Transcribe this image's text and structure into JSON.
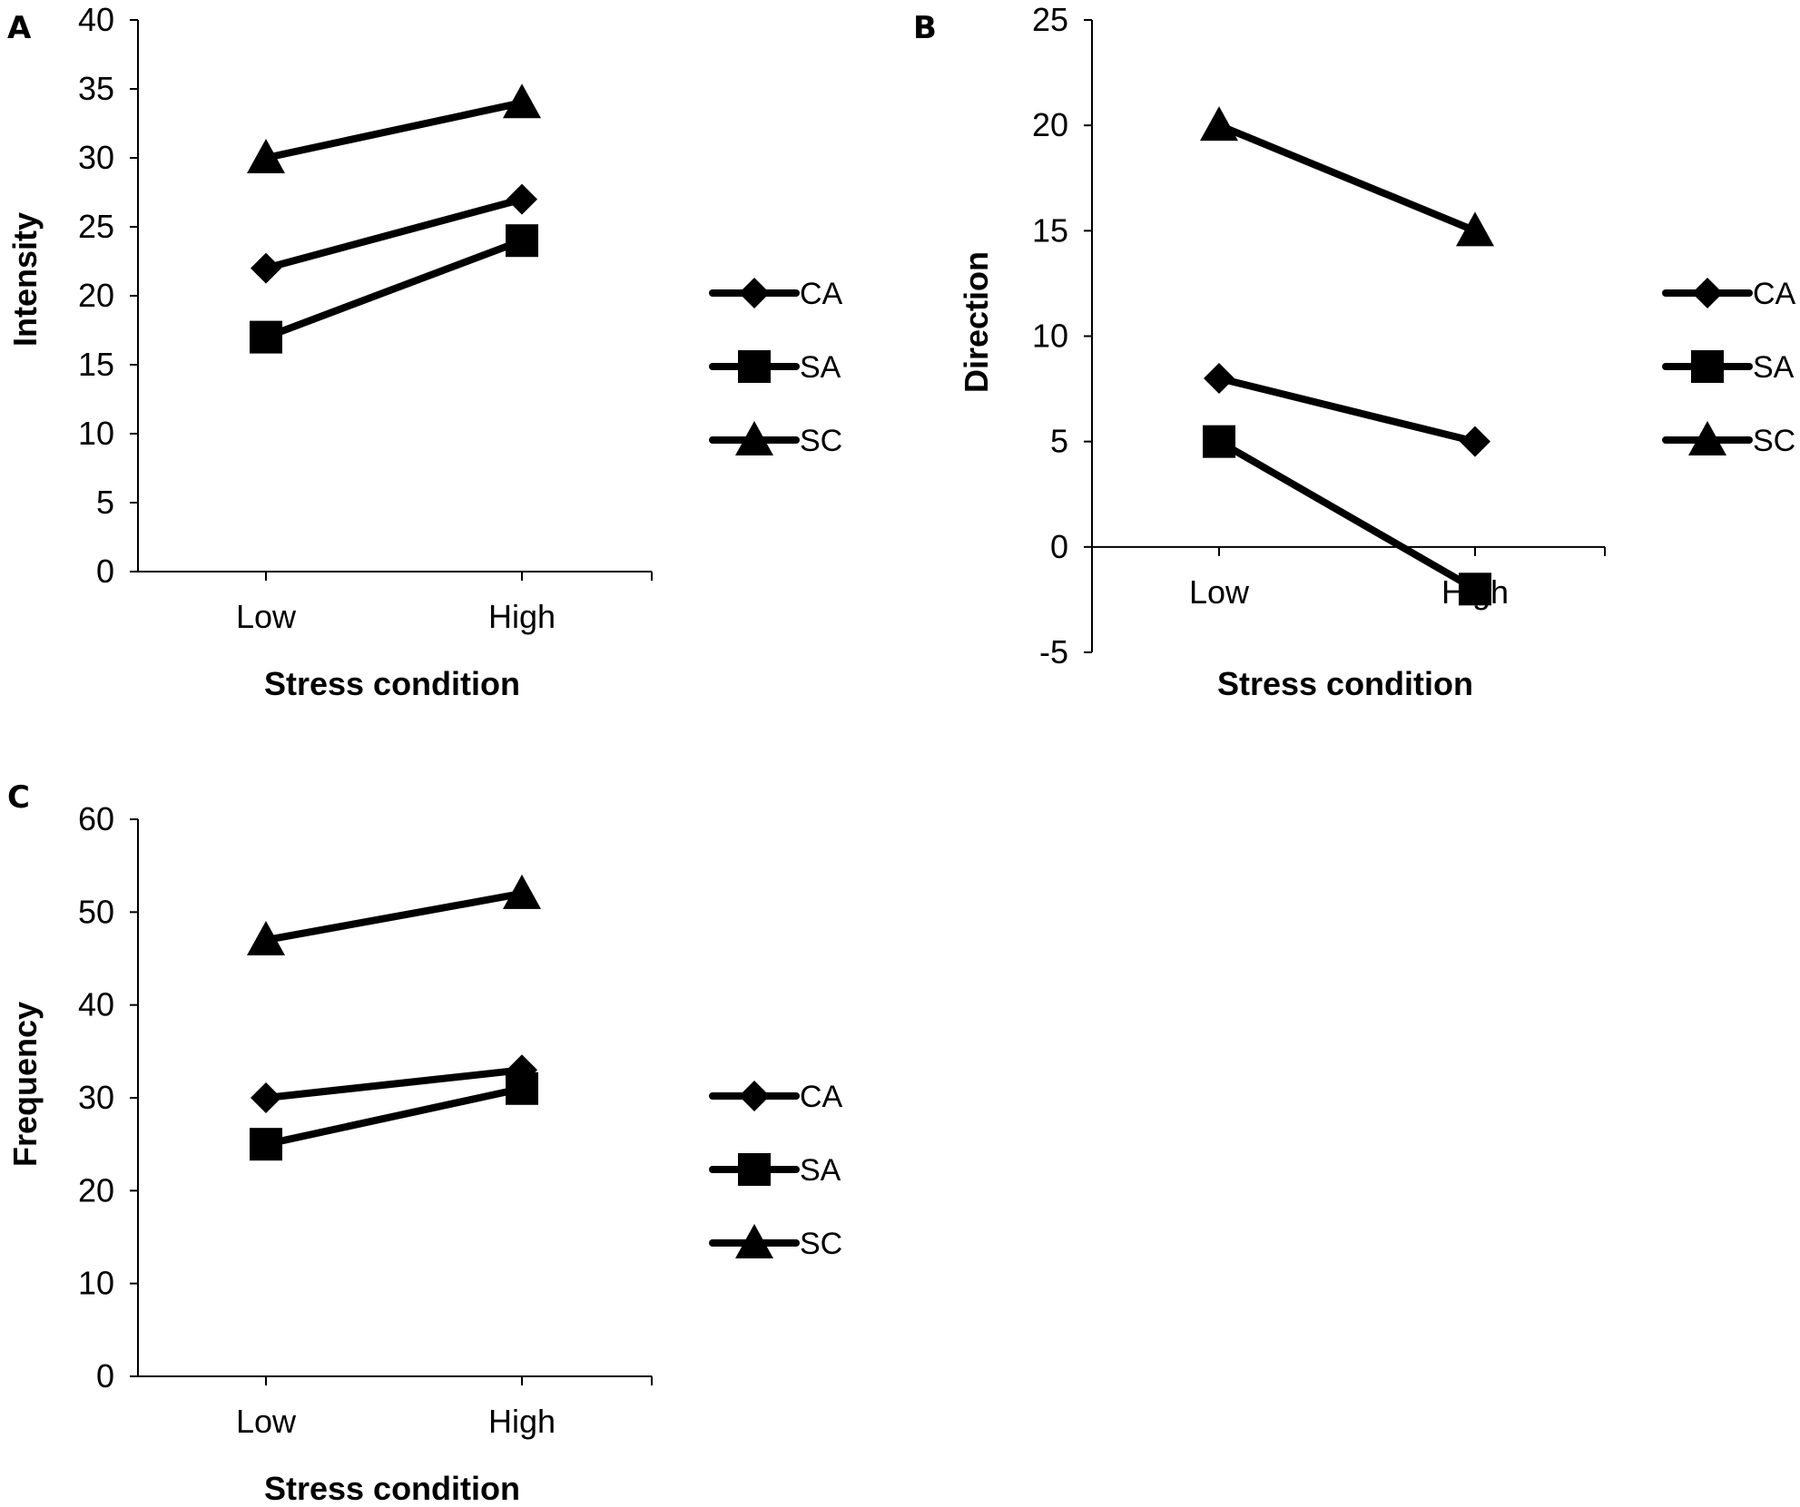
{
  "figure": {
    "colors": {
      "ink": "#000000",
      "background": "#ffffff"
    }
  },
  "chart_data": [
    {
      "panel": "A",
      "type": "line",
      "categories": [
        "Low",
        "High"
      ],
      "series": [
        {
          "name": "CA",
          "marker": "diamond",
          "values": [
            22,
            27
          ]
        },
        {
          "name": "SA",
          "marker": "square",
          "values": [
            17,
            24
          ]
        },
        {
          "name": "SC",
          "marker": "triangle",
          "values": [
            30,
            34
          ]
        }
      ],
      "xlabel": "Stress condition",
      "ylabel": "Intensity",
      "ylim": [
        0,
        40
      ],
      "yticks": [
        0,
        5,
        10,
        15,
        20,
        25,
        30,
        35,
        40
      ],
      "ytick_labels": [
        "0",
        "5",
        "10",
        "15",
        "20",
        "25",
        "30",
        "35",
        "40"
      ],
      "grid": false,
      "legend_position": "right"
    },
    {
      "panel": "B",
      "type": "line",
      "categories": [
        "Low",
        "High"
      ],
      "series": [
        {
          "name": "CA",
          "marker": "diamond",
          "values": [
            8,
            5
          ]
        },
        {
          "name": "SA",
          "marker": "square",
          "values": [
            5,
            -2
          ]
        },
        {
          "name": "SC",
          "marker": "triangle",
          "values": [
            20,
            15
          ]
        }
      ],
      "xlabel": "Stress condition",
      "ylabel": "Direction",
      "ylim": [
        -5,
        25
      ],
      "yticks": [
        -5,
        0,
        5,
        10,
        15,
        20,
        25
      ],
      "ytick_labels": [
        "-5",
        "0",
        "5",
        "10",
        "15",
        "20",
        "25"
      ],
      "grid": false,
      "legend_position": "right"
    },
    {
      "panel": "C",
      "type": "line",
      "categories": [
        "Low",
        "High"
      ],
      "series": [
        {
          "name": "CA",
          "marker": "diamond",
          "values": [
            30,
            33
          ]
        },
        {
          "name": "SA",
          "marker": "square",
          "values": [
            25,
            31
          ]
        },
        {
          "name": "SC",
          "marker": "triangle",
          "values": [
            47,
            52
          ]
        }
      ],
      "xlabel": "Stress condition",
      "ylabel": "Frequency",
      "ylim": [
        0,
        60
      ],
      "yticks": [
        0,
        10,
        20,
        30,
        40,
        50,
        60
      ],
      "ytick_labels": [
        "0",
        "10",
        "20",
        "30",
        "40",
        "50",
        "60"
      ],
      "grid": false,
      "legend_position": "right"
    }
  ]
}
